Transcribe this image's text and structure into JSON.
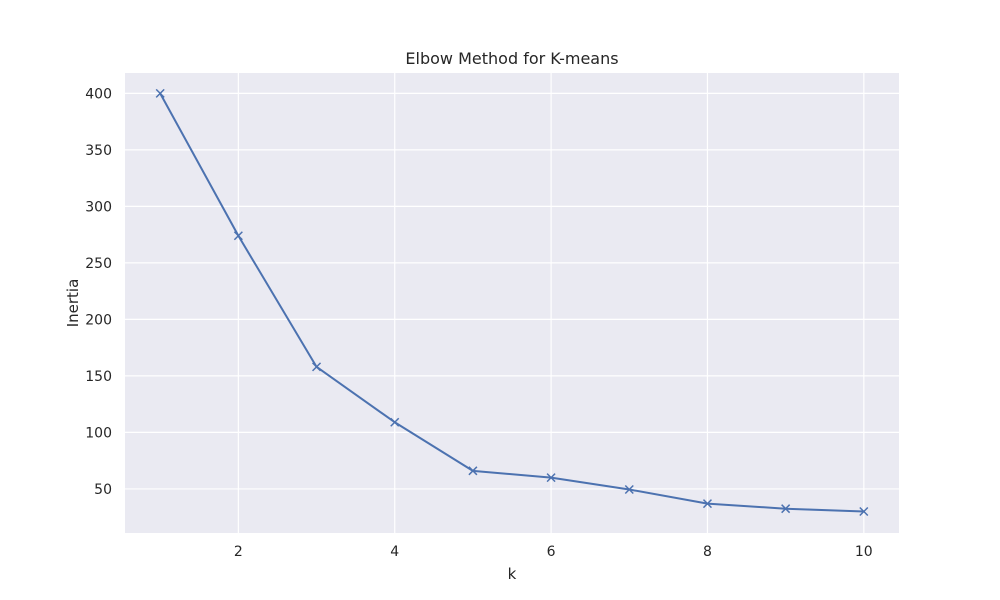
{
  "chart_data": {
    "type": "line",
    "title": "Elbow Method for K-means",
    "xlabel": "k",
    "ylabel": "Inertia",
    "x": [
      1,
      2,
      3,
      4,
      5,
      6,
      7,
      8,
      9,
      10
    ],
    "series": [
      {
        "values": [
          400,
          274,
          158,
          109,
          66,
          60,
          49.5,
          37,
          32.5,
          30
        ]
      }
    ],
    "xlim": [
      0.55,
      10.45
    ],
    "ylim": [
      11,
      418
    ],
    "xticks": [
      2,
      4,
      6,
      8,
      10
    ],
    "yticks": [
      50,
      100,
      150,
      200,
      250,
      300,
      350,
      400
    ],
    "marker": "x",
    "grid": true,
    "colors": {
      "background": "#eaeaf2",
      "grid": "#ffffff",
      "line": "#4c72b0",
      "text": "#262626"
    }
  }
}
